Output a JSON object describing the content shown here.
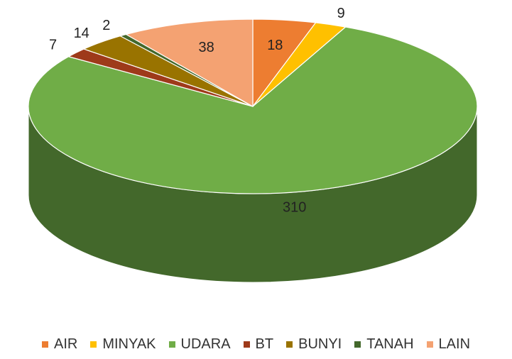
{
  "chart_data": {
    "type": "pie3d",
    "categories": [
      "AIR",
      "MINYAK",
      "UDARA",
      "BT",
      "BUNYI",
      "TANAH",
      "LAIN"
    ],
    "values": [
      18,
      9,
      310,
      7,
      14,
      2,
      38
    ],
    "colors": [
      "#ed7d31",
      "#ffc000",
      "#70ad47",
      "#9e3a1a",
      "#997300",
      "#43682b",
      "#f4a272"
    ],
    "legend": "bottom"
  }
}
